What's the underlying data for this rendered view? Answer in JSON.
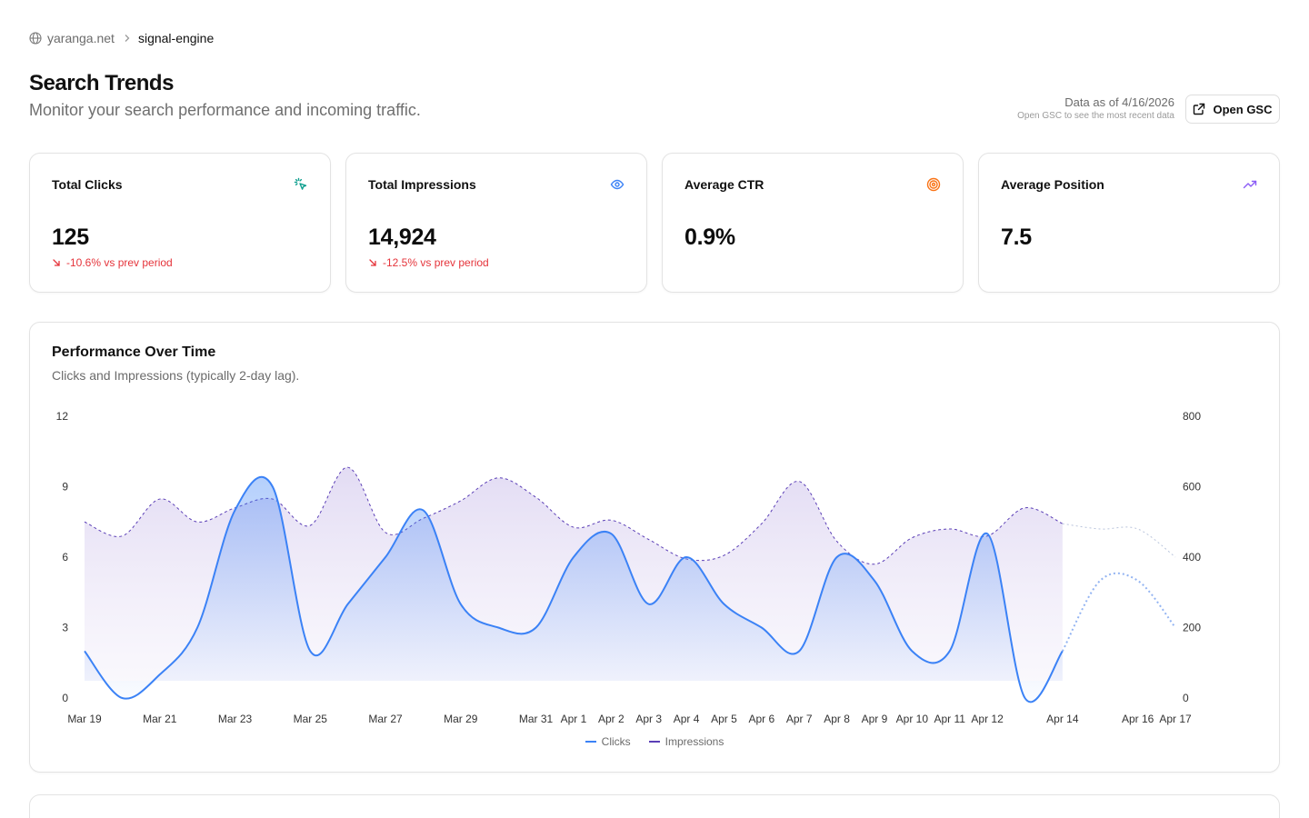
{
  "breadcrumb": {
    "site": "yaranga.net",
    "project": "signal-engine"
  },
  "header": {
    "title": "Search Trends",
    "subtitle": "Monitor your search performance and incoming traffic.",
    "data_as_of": "Data as of 4/16/2026",
    "data_note": "Open GSC to see the most recent data",
    "open_gsc_label": "Open GSC"
  },
  "cards": [
    {
      "label": "Total Clicks",
      "value": "125",
      "delta": "-10.6% vs prev period",
      "icon": "cursor-click-icon",
      "icon_color": "#0f9f8f"
    },
    {
      "label": "Total Impressions",
      "value": "14,924",
      "delta": "-12.5% vs prev period",
      "icon": "eye-icon",
      "icon_color": "#3b82f6"
    },
    {
      "label": "Average CTR",
      "value": "0.9%",
      "delta": "",
      "icon": "target-icon",
      "icon_color": "#f97316"
    },
    {
      "label": "Average Position",
      "value": "7.5",
      "delta": "",
      "icon": "trending-up-icon",
      "icon_color": "#8b5cf6"
    }
  ],
  "colors": {
    "clicks": "#3b82f6",
    "impressions": "#5b3fb6",
    "impressions_fill": "#ece7f7",
    "negative": "#e5343b"
  },
  "performance": {
    "title": "Performance Over Time",
    "description": "Clicks and Impressions (typically 2-day lag).",
    "legend": {
      "clicks": "Clicks",
      "impressions": "Impressions"
    }
  },
  "chart_data": {
    "type": "area",
    "x_start": "2026-03-19",
    "x_end": "2026-04-17",
    "x_ticks": [
      "Mar 19",
      "Mar 21",
      "Mar 23",
      "Mar 25",
      "Mar 27",
      "Mar 29",
      "Mar 31",
      "Apr 1",
      "Apr 2",
      "Apr 3",
      "Apr 4",
      "Apr 5",
      "Apr 6",
      "Apr 7",
      "Apr 8",
      "Apr 9",
      "Apr 10",
      "Apr 11",
      "Apr 12",
      "Apr 14",
      "Apr 16",
      "Apr 17"
    ],
    "left_axis": {
      "ticks": [
        0,
        3,
        6,
        9,
        12
      ],
      "range": [
        0,
        12
      ]
    },
    "right_axis": {
      "ticks": [
        0,
        200,
        400,
        600,
        800
      ],
      "range": [
        0,
        800
      ]
    },
    "series": [
      {
        "name": "Clicks",
        "axis": "left",
        "dates": [
          "2026-03-19",
          "2026-03-20",
          "2026-03-21",
          "2026-03-22",
          "2026-03-23",
          "2026-03-24",
          "2026-03-25",
          "2026-03-26",
          "2026-03-27",
          "2026-03-28",
          "2026-03-29",
          "2026-03-30",
          "2026-03-31",
          "2026-04-01",
          "2026-04-02",
          "2026-04-03",
          "2026-04-04",
          "2026-04-05",
          "2026-04-06",
          "2026-04-07",
          "2026-04-08",
          "2026-04-09",
          "2026-04-10",
          "2026-04-11",
          "2026-04-12",
          "2026-04-13",
          "2026-04-14",
          "2026-04-15",
          "2026-04-16",
          "2026-04-17"
        ],
        "values": [
          2,
          0,
          1,
          3,
          8,
          9,
          2,
          4,
          6,
          8,
          4,
          3,
          3,
          6,
          7,
          4,
          6,
          4,
          3,
          2,
          6,
          5,
          2,
          2,
          7,
          0,
          2,
          5,
          5,
          3
        ],
        "partial_from": "2026-04-14"
      },
      {
        "name": "Impressions",
        "axis": "right",
        "dates": [
          "2026-03-19",
          "2026-03-20",
          "2026-03-21",
          "2026-03-22",
          "2026-03-23",
          "2026-03-24",
          "2026-03-25",
          "2026-03-26",
          "2026-03-27",
          "2026-03-28",
          "2026-03-29",
          "2026-03-30",
          "2026-03-31",
          "2026-04-01",
          "2026-04-02",
          "2026-04-03",
          "2026-04-04",
          "2026-04-05",
          "2026-04-06",
          "2026-04-07",
          "2026-04-08",
          "2026-04-09",
          "2026-04-10",
          "2026-04-11",
          "2026-04-12",
          "2026-04-13",
          "2026-04-14",
          "2026-04-15",
          "2026-04-16",
          "2026-04-17"
        ],
        "values": [
          500,
          460,
          565,
          500,
          540,
          565,
          490,
          655,
          470,
          510,
          560,
          625,
          570,
          485,
          505,
          450,
          395,
          405,
          495,
          615,
          445,
          380,
          455,
          480,
          460,
          540,
          495,
          480,
          480,
          400
        ],
        "partial_from": "2026-04-14"
      }
    ]
  }
}
